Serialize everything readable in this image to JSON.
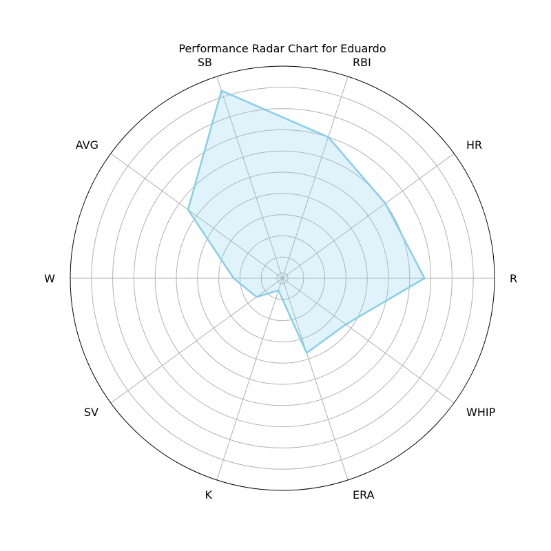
{
  "chart_data": {
    "type": "radar",
    "title": "Performance Radar Chart for Eduardo",
    "categories": [
      "R",
      "HR",
      "RBI",
      "SB",
      "AVG",
      "W",
      "SV",
      "K",
      "ERA",
      "WHIP"
    ],
    "values": [
      0.67,
      0.6,
      0.7,
      0.93,
      0.55,
      0.23,
      0.15,
      0.06,
      0.37,
      0.37
    ],
    "rlim": [
      0,
      1
    ],
    "rings": [
      0.1,
      0.2,
      0.3,
      0.4,
      0.5,
      0.6,
      0.7,
      0.8,
      0.9
    ],
    "grid": true,
    "line_color": "#87CEEB",
    "fill_color": "#87CEEB",
    "fill_opacity": 0.25
  }
}
